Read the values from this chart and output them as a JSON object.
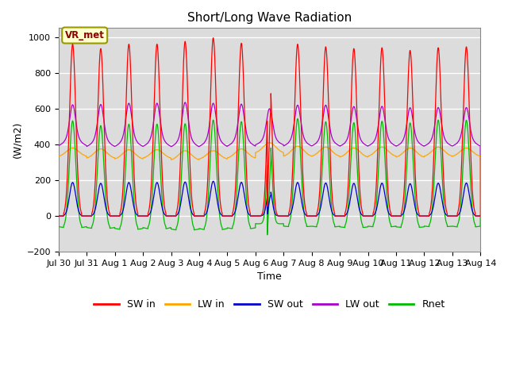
{
  "title": "Short/Long Wave Radiation",
  "xlabel": "Time",
  "ylabel": "(W/m2)",
  "ylim": [
    -200,
    1050
  ],
  "annotation": "VR_met",
  "bg_color": "#dcdcdc",
  "fig_bg": "#ffffff",
  "grid_color": "#ffffff",
  "colors": {
    "SW_in": "#ff0000",
    "LW_in": "#ffa500",
    "SW_out": "#0000cd",
    "LW_out": "#aa00cc",
    "Rnet": "#00bb00"
  },
  "legend": [
    "SW in",
    "LW in",
    "SW out",
    "LW out",
    "Rnet"
  ],
  "n_days": 15,
  "points_per_day": 288,
  "yticks": [
    -200,
    0,
    200,
    400,
    600,
    800,
    1000
  ]
}
